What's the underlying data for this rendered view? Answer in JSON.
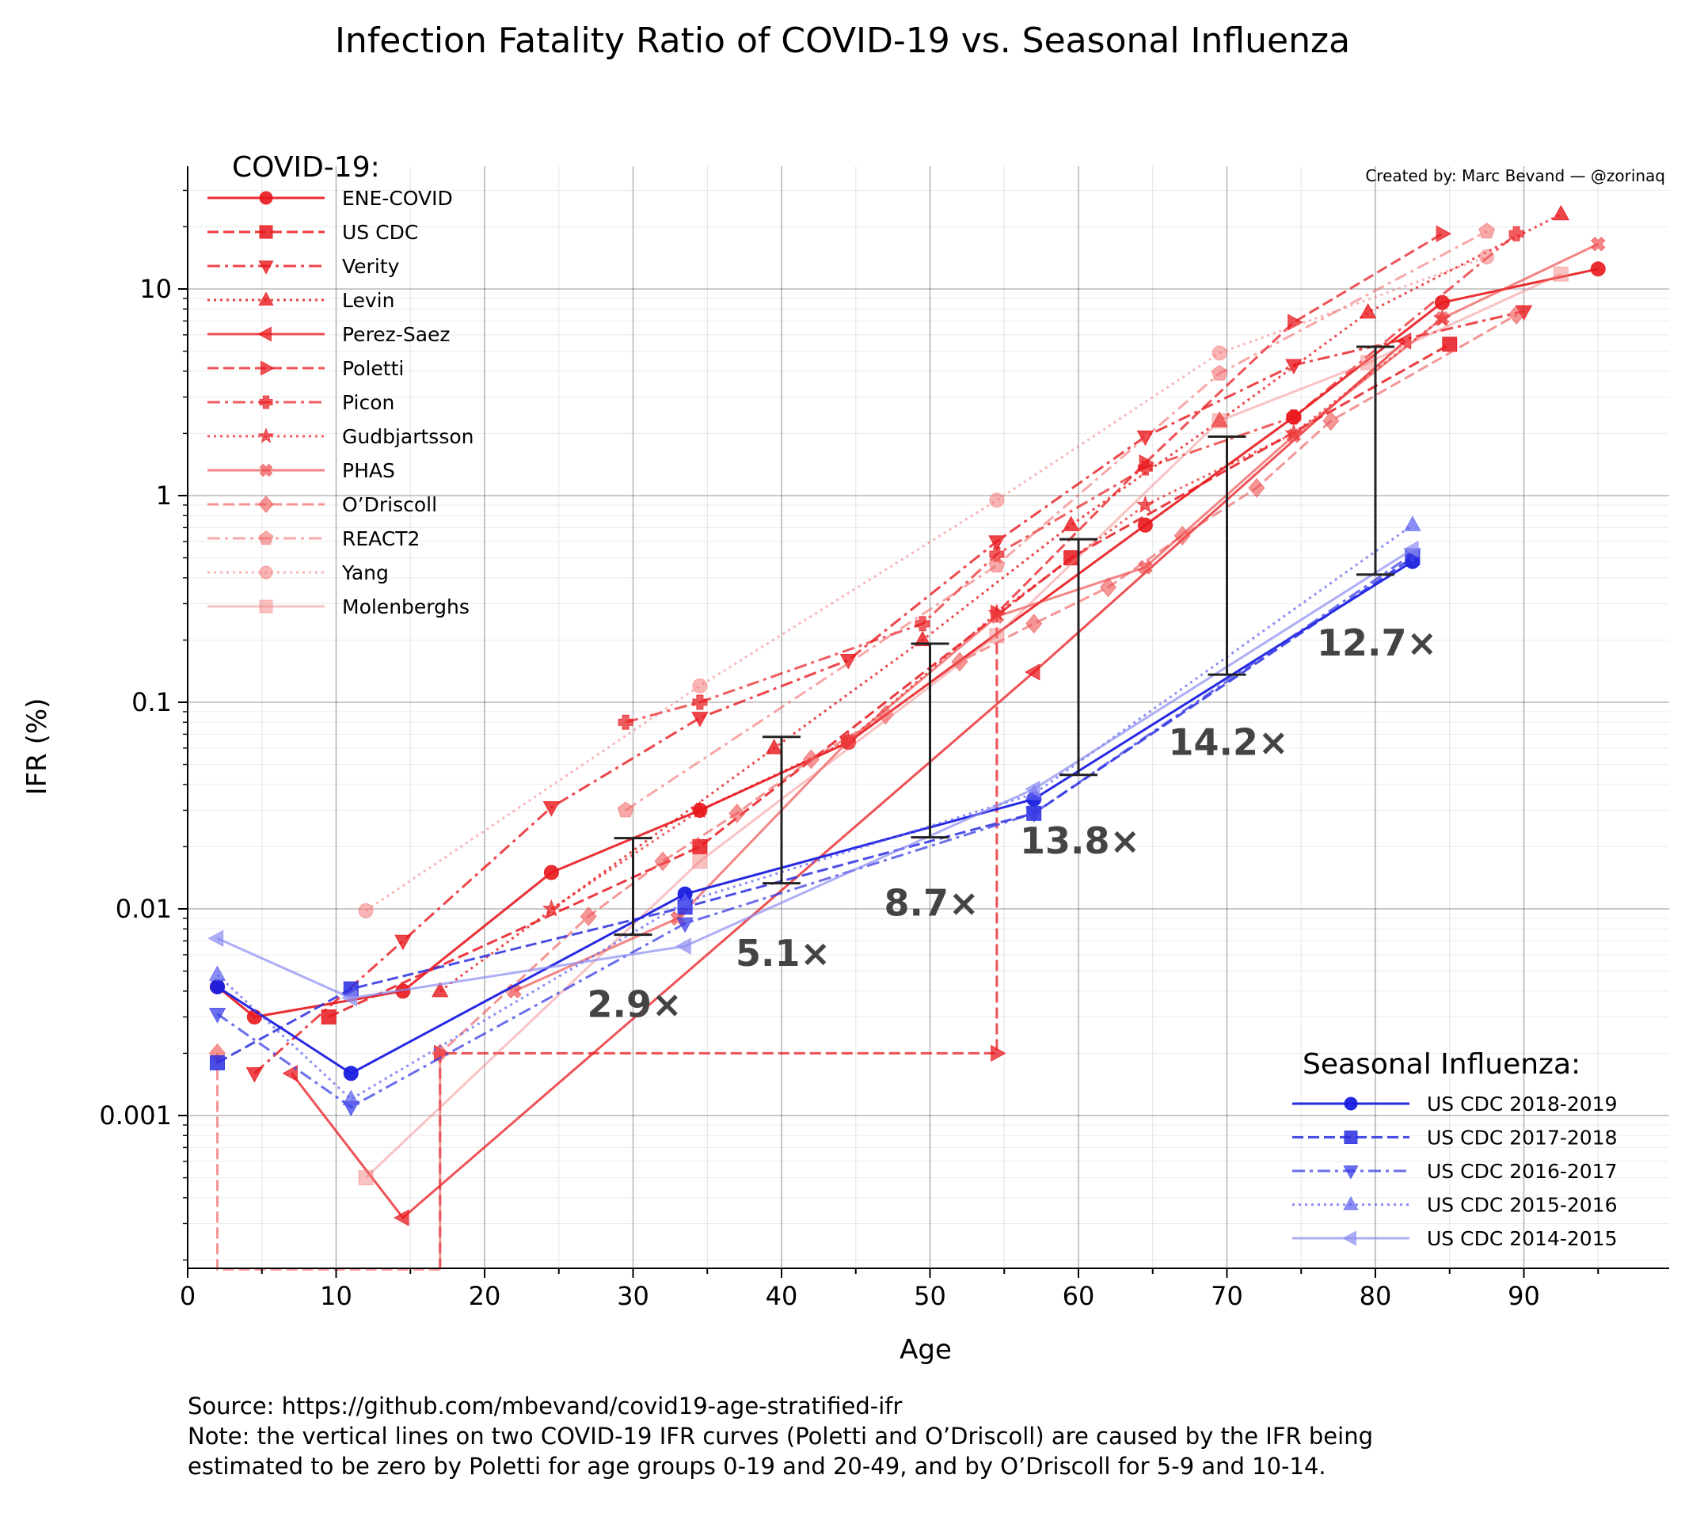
{
  "title": "Infection Fatality Ratio of COVID-19 vs. Seasonal Influenza",
  "credit": "Created by: Marc Bevand — @zorinaq",
  "footer": {
    "source": "Source: https://github.com/mbevand/covid19-age-stratified-ifr",
    "note_line1": "Note: the vertical lines on two COVID-19 IFR curves (Poletti and O’Driscoll) are caused by the IFR being",
    "note_line2": "estimated to be zero by Poletti for age groups 0-19 and 20-49, and by O’Driscoll for 5-9 and 10-14."
  },
  "legend_covid_title": "COVID-19:",
  "legend_flu_title": "Seasonal Influenza:",
  "chart_data": {
    "type": "line",
    "xlabel": "Age",
    "ylabel": "IFR (%)",
    "xlim": [
      0,
      100
    ],
    "ylim": [
      0.00018,
      38
    ],
    "y_scale": "log",
    "x_ticks": [
      0,
      10,
      20,
      30,
      40,
      50,
      60,
      70,
      80,
      90
    ],
    "y_ticks": [
      {
        "value": 0.001,
        "label": "0.001"
      },
      {
        "value": 0.01,
        "label": "0.01"
      },
      {
        "value": 0.1,
        "label": "0.1"
      },
      {
        "value": 1,
        "label": "1"
      },
      {
        "value": 10,
        "label": "10"
      }
    ],
    "grid": true,
    "covid_series": [
      {
        "name": "ENE-COVID",
        "color": "#e8181d",
        "opacity": 0.9,
        "dash": "solid",
        "marker": "circle",
        "x": [
          2,
          4.5,
          14.5,
          24.5,
          34.5,
          44.5,
          64.5,
          74.5,
          84.5,
          95
        ],
        "y": [
          0.0042,
          0.003,
          0.004,
          0.015,
          0.03,
          0.064,
          0.72,
          2.4,
          8.6,
          12.5
        ]
      },
      {
        "name": "US CDC",
        "color": "#e8181d",
        "opacity": 0.85,
        "dash": "dashed",
        "marker": "square",
        "x": [
          9.5,
          34.5,
          59.5,
          85
        ],
        "y": [
          0.003,
          0.02,
          0.5,
          5.4
        ]
      },
      {
        "name": "Verity",
        "color": "#e8181d",
        "opacity": 0.8,
        "dash": "dashdot",
        "marker": "triangle-down",
        "x": [
          4.5,
          14.5,
          24.5,
          34.5,
          44.5,
          54.5,
          64.5,
          74.5,
          90
        ],
        "y": [
          0.0016,
          0.007,
          0.031,
          0.084,
          0.16,
          0.6,
          1.93,
          4.28,
          7.8
        ]
      },
      {
        "name": "Levin",
        "color": "#e8181d",
        "opacity": 0.8,
        "dash": "dotted",
        "marker": "triangle-up",
        "x": [
          17,
          39.5,
          49.5,
          59.5,
          69.5,
          79.5,
          92.5
        ],
        "y": [
          0.004,
          0.06,
          0.2,
          0.72,
          2.3,
          7.7,
          23
        ]
      },
      {
        "name": "Perez-Saez",
        "color": "#e8181d",
        "opacity": 0.75,
        "dash": "solid",
        "marker": "triangle-left",
        "x": [
          7,
          14.5,
          57,
          82
        ],
        "y": [
          0.0016,
          0.00032,
          0.14,
          5.6
        ]
      },
      {
        "name": "Poletti",
        "color": "#e8181d",
        "opacity": 0.75,
        "dash": "dashed",
        "marker": "triangle-right",
        "x": [
          17,
          17,
          54.5,
          54.5,
          64.5,
          74.5,
          84.5
        ],
        "y": [
          0.00018,
          0.002,
          0.002,
          0.27,
          1.44,
          6.9,
          18.5
        ]
      },
      {
        "name": "Picon",
        "color": "#e8181d",
        "opacity": 0.7,
        "dash": "dashdot",
        "marker": "plus",
        "x": [
          29.5,
          34.5,
          49.5,
          54.5,
          64.5,
          74.5,
          89.5
        ],
        "y": [
          0.08,
          0.1,
          0.24,
          0.52,
          1.36,
          2.4,
          18.5
        ]
      },
      {
        "name": "Gudbjartsson",
        "color": "#e8181d",
        "opacity": 0.7,
        "dash": "dotted",
        "marker": "star",
        "x": [
          24.5,
          34.5,
          44.5,
          54.5,
          64.5,
          74.5,
          84.5
        ],
        "y": [
          0.01,
          0.03,
          0.065,
          0.27,
          0.9,
          2.0,
          7.2
        ]
      },
      {
        "name": "PHAS",
        "color": "#ee4444",
        "opacity": 0.65,
        "dash": "solid",
        "marker": "x",
        "x": [
          22,
          33,
          44.5,
          54.5,
          64.5,
          74.5,
          84.5,
          95
        ],
        "y": [
          0.004,
          0.009,
          0.065,
          0.26,
          0.45,
          1.95,
          7.2,
          16.5
        ]
      },
      {
        "name": "O’Driscoll",
        "color": "#ef5050",
        "opacity": 0.6,
        "dash": "dashed",
        "marker": "diamond",
        "x": [
          2,
          2,
          17,
          17,
          27,
          32,
          37,
          42,
          47,
          52,
          57,
          62,
          67,
          72,
          77,
          89.5
        ],
        "y": [
          0.002,
          0.00018,
          0.00018,
          0.002,
          0.0092,
          0.017,
          0.029,
          0.053,
          0.087,
          0.157,
          0.24,
          0.36,
          0.64,
          1.09,
          2.3,
          7.5
        ]
      },
      {
        "name": "REACT2",
        "color": "#f06060",
        "opacity": 0.55,
        "dash": "dashdot",
        "marker": "pentagon",
        "x": [
          29.5,
          54.5,
          69.5,
          87.5
        ],
        "y": [
          0.03,
          0.46,
          3.9,
          19
        ]
      },
      {
        "name": "Yang",
        "color": "#f36b6b",
        "opacity": 0.5,
        "dash": "dotted",
        "marker": "circle",
        "x": [
          12,
          34.5,
          54.5,
          69.5,
          87.5
        ],
        "y": [
          0.0098,
          0.12,
          0.95,
          4.9,
          14.3
        ]
      },
      {
        "name": "Molenberghs",
        "color": "#f27b7b",
        "opacity": 0.45,
        "dash": "solid",
        "marker": "square",
        "x": [
          12,
          34.5,
          54.5,
          69.5,
          79.5,
          92.5
        ],
        "y": [
          0.0005,
          0.017,
          0.21,
          2.3,
          4.4,
          11.8
        ]
      }
    ],
    "flu_series": [
      {
        "name": "US CDC 2018-2019",
        "color": "#1a1ee0",
        "opacity": 0.95,
        "dash": "solid",
        "marker": "circle",
        "x": [
          2,
          11,
          33.5,
          57,
          82.5
        ],
        "y": [
          0.0042,
          0.0016,
          0.0118,
          0.034,
          0.48
        ]
      },
      {
        "name": "US CDC 2017-2018",
        "color": "#2a2ee0",
        "opacity": 0.85,
        "dash": "dashed",
        "marker": "square",
        "x": [
          2,
          11,
          33.5,
          57,
          82.5
        ],
        "y": [
          0.0018,
          0.0041,
          0.0102,
          0.029,
          0.5
        ]
      },
      {
        "name": "US CDC 2016-2017",
        "color": "#3a3ee6",
        "opacity": 0.75,
        "dash": "dashdot",
        "marker": "triangle-down",
        "x": [
          2,
          11,
          33.5,
          57,
          82.5
        ],
        "y": [
          0.0031,
          0.0011,
          0.0085,
          0.029,
          0.52
        ]
      },
      {
        "name": "US CDC 2015-2016",
        "color": "#5a5ef0",
        "opacity": 0.7,
        "dash": "dotted",
        "marker": "triangle-up",
        "x": [
          2,
          11,
          33.5,
          57,
          82.5
        ],
        "y": [
          0.0048,
          0.0012,
          0.0108,
          0.036,
          0.72
        ]
      },
      {
        "name": "US CDC 2014-2015",
        "color": "#8a8cf2",
        "opacity": 0.7,
        "dash": "solid",
        "marker": "triangle-left",
        "x": [
          2,
          11,
          33.5,
          57,
          82.5
        ],
        "y": [
          0.0072,
          0.0037,
          0.0066,
          0.038,
          0.55
        ]
      }
    ],
    "ratio_bars": [
      {
        "x": 30,
        "low": 0.0075,
        "high": 0.022,
        "label": "2.9×",
        "label_x": 30,
        "label_y": 0.0034
      },
      {
        "x": 40,
        "low": 0.0133,
        "high": 0.068,
        "label": "5.1×",
        "label_x": 40,
        "label_y": 0.006
      },
      {
        "x": 50,
        "low": 0.0222,
        "high": 0.192,
        "label": "8.7×",
        "label_x": 50,
        "label_y": 0.0105
      },
      {
        "x": 60,
        "low": 0.0445,
        "high": 0.615,
        "label": "13.8×",
        "label_x": 60,
        "label_y": 0.021
      },
      {
        "x": 70,
        "low": 0.136,
        "high": 1.93,
        "label": "14.2×",
        "label_x": 70,
        "label_y": 0.063
      },
      {
        "x": 80,
        "low": 0.415,
        "high": 5.25,
        "label": "12.7×",
        "label_x": 80,
        "label_y": 0.19
      }
    ]
  }
}
